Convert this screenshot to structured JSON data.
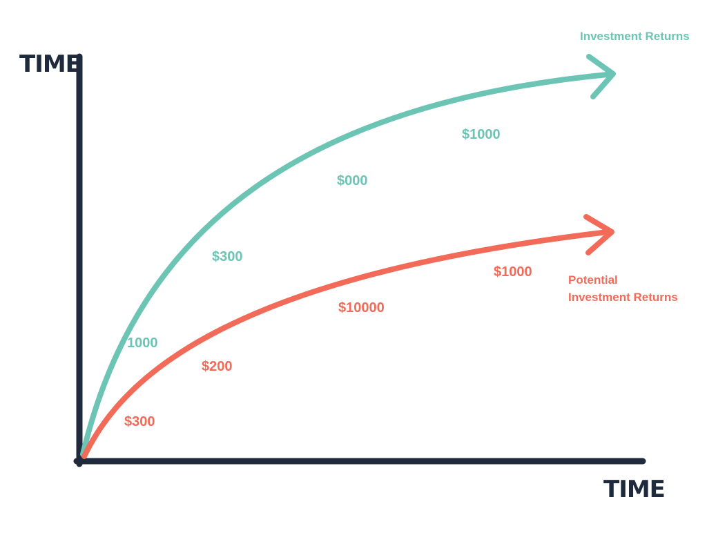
{
  "colors": {
    "axis": "#1f2a3d",
    "teal": "#6cc4b4",
    "coral": "#f26a58"
  },
  "chart_data": {
    "type": "line",
    "y_axis_title": "TIME",
    "x_axis_title": "TIME",
    "series": [
      {
        "name": "Investment Returns",
        "color": "#6cc4b4",
        "labels": [
          "1000",
          "$300",
          "$000",
          "$1000"
        ]
      },
      {
        "name_lines": [
          "Potential",
          "Investment Returns"
        ],
        "color": "#f26a58",
        "labels": [
          "$300",
          "$200",
          "$10000",
          "$1000"
        ]
      }
    ]
  }
}
